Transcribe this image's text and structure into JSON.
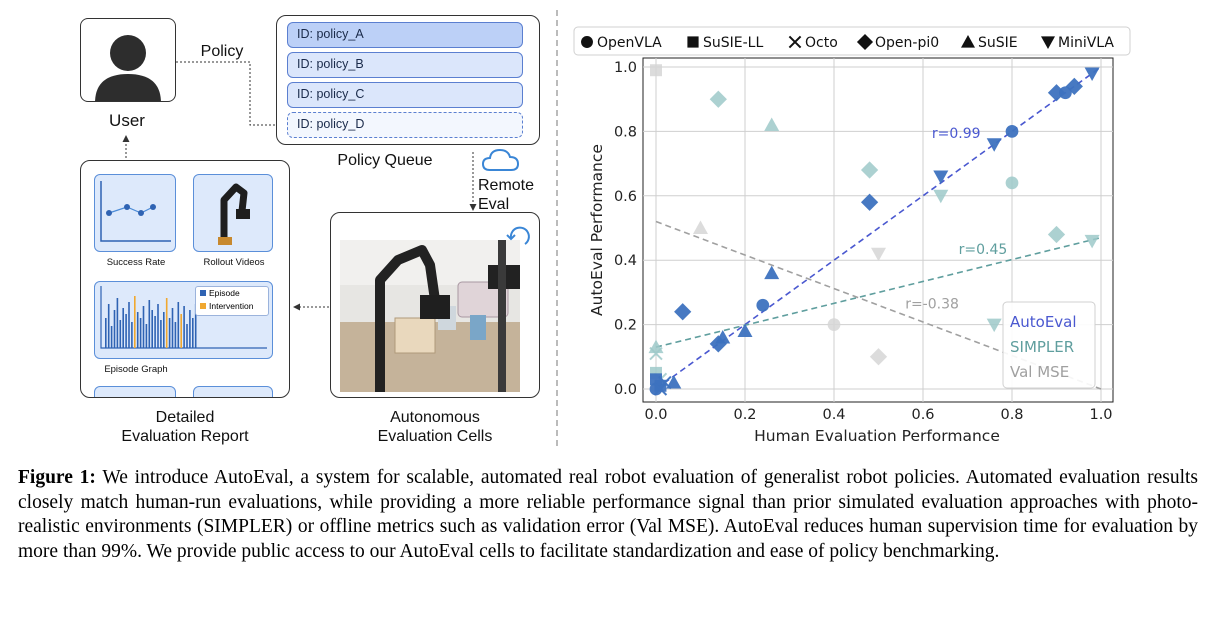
{
  "figure": {
    "user_label": "User",
    "policy_arrow_label": "Policy",
    "policy_queue": {
      "title": "Policy Queue",
      "items": [
        "ID: policy_A",
        "ID: policy_B",
        "ID: policy_C",
        "ID: policy_D"
      ]
    },
    "remote_eval_label": "Remote\nEval",
    "cells_label": "Autonomous\nEvaluation Cells",
    "report": {
      "title": "Detailed\nEvaluation Report",
      "success_rate_label": "Success Rate",
      "rollout_videos_label": "Rollout Videos",
      "episode_graph_label": "Episode Graph",
      "legend_episode": "Episode",
      "legend_intervention": "Intervention"
    },
    "colors": {
      "autoeval": "#4a58d0",
      "simpler": "#5f9e9e",
      "val_mse": "#a0a0a0",
      "point_blue": "#3d72bf",
      "card_fill": "#dde9fb",
      "intervention": "#f0a830"
    }
  },
  "chart_data": {
    "type": "scatter",
    "xlabel": "Human Evaluation Performance",
    "ylabel": "AutoEval Performance",
    "xlim": [
      0,
      1.0
    ],
    "ylim": [
      0,
      1.0
    ],
    "xticks": [
      "0.0",
      "0.2",
      "0.4",
      "0.6",
      "0.8",
      "1.0"
    ],
    "yticks": [
      "0.0",
      "0.2",
      "0.4",
      "0.6",
      "0.8",
      "1.0"
    ],
    "grid": true,
    "marker_legend": {
      "placement": "top",
      "entries": [
        {
          "name": "OpenVLA",
          "marker": "circle"
        },
        {
          "name": "SuSIE-LL",
          "marker": "square"
        },
        {
          "name": "Octo",
          "marker": "x"
        },
        {
          "name": "Open-pi0",
          "marker": "diamond"
        },
        {
          "name": "SuSIE",
          "marker": "triangle-up"
        },
        {
          "name": "MiniVLA",
          "marker": "triangle-down"
        }
      ]
    },
    "method_legend": {
      "placement": "bottom-right",
      "entries": [
        "AutoEval",
        "SIMPLER",
        "Val MSE"
      ]
    },
    "series": [
      {
        "name": "AutoEval",
        "color": "#3d72bf",
        "points": [
          {
            "x": 0.0,
            "y": 0.0,
            "m": "circle"
          },
          {
            "x": 0.01,
            "y": 0.01,
            "m": "square"
          },
          {
            "x": 0.0,
            "y": 0.03,
            "m": "square"
          },
          {
            "x": 0.02,
            "y": 0.02,
            "m": "x"
          },
          {
            "x": 0.01,
            "y": 0.0,
            "m": "x"
          },
          {
            "x": 0.04,
            "y": 0.02,
            "m": "triangle-up"
          },
          {
            "x": 0.06,
            "y": 0.24,
            "m": "diamond"
          },
          {
            "x": 0.14,
            "y": 0.14,
            "m": "diamond"
          },
          {
            "x": 0.15,
            "y": 0.16,
            "m": "triangle-up"
          },
          {
            "x": 0.2,
            "y": 0.18,
            "m": "triangle-up"
          },
          {
            "x": 0.24,
            "y": 0.26,
            "m": "circle"
          },
          {
            "x": 0.26,
            "y": 0.36,
            "m": "triangle-up"
          },
          {
            "x": 0.48,
            "y": 0.58,
            "m": "diamond"
          },
          {
            "x": 0.64,
            "y": 0.66,
            "m": "triangle-down"
          },
          {
            "x": 0.76,
            "y": 0.76,
            "m": "triangle-down"
          },
          {
            "x": 0.8,
            "y": 0.8,
            "m": "circle"
          },
          {
            "x": 0.9,
            "y": 0.92,
            "m": "diamond"
          },
          {
            "x": 0.92,
            "y": 0.92,
            "m": "circle"
          },
          {
            "x": 0.94,
            "y": 0.94,
            "m": "diamond"
          },
          {
            "x": 0.98,
            "y": 0.98,
            "m": "triangle-down"
          }
        ]
      },
      {
        "name": "SIMPLER",
        "color": "#9ec9c9",
        "points": [
          {
            "x": 0.0,
            "y": 0.13,
            "m": "triangle-up"
          },
          {
            "x": 0.0,
            "y": 0.11,
            "m": "x"
          },
          {
            "x": 0.01,
            "y": 0.03,
            "m": "x"
          },
          {
            "x": 0.0,
            "y": 0.05,
            "m": "square"
          },
          {
            "x": 0.14,
            "y": 0.9,
            "m": "diamond"
          },
          {
            "x": 0.26,
            "y": 0.82,
            "m": "triangle-up"
          },
          {
            "x": 0.48,
            "y": 0.68,
            "m": "diamond"
          },
          {
            "x": 0.64,
            "y": 0.6,
            "m": "triangle-down"
          },
          {
            "x": 0.8,
            "y": 0.64,
            "m": "circle"
          },
          {
            "x": 0.76,
            "y": 0.2,
            "m": "triangle-down"
          },
          {
            "x": 0.9,
            "y": 0.48,
            "m": "diamond"
          },
          {
            "x": 0.98,
            "y": 0.46,
            "m": "triangle-down"
          }
        ]
      },
      {
        "name": "Val MSE",
        "color": "#d6d6d6",
        "points": [
          {
            "x": 0.0,
            "y": 0.99,
            "m": "square"
          },
          {
            "x": 0.1,
            "y": 0.5,
            "m": "triangle-up"
          },
          {
            "x": 0.4,
            "y": 0.2,
            "m": "circle"
          },
          {
            "x": 0.5,
            "y": 0.42,
            "m": "triangle-down"
          },
          {
            "x": 0.5,
            "y": 0.1,
            "m": "diamond"
          },
          {
            "x": 0.0,
            "y": 0.0,
            "m": "circle"
          }
        ]
      }
    ],
    "fit_lines": [
      {
        "series": "AutoEval",
        "label": "r=0.99",
        "from": [
          0.0,
          0.0
        ],
        "to": [
          1.0,
          1.0
        ],
        "label_at": [
          0.62,
          0.78
        ]
      },
      {
        "series": "SIMPLER",
        "label": "r=0.45",
        "from": [
          0.0,
          0.13
        ],
        "to": [
          1.0,
          0.47
        ],
        "label_at": [
          0.68,
          0.42
        ]
      },
      {
        "series": "Val MSE",
        "label": "r=-0.38",
        "from": [
          0.0,
          0.52
        ],
        "to": [
          1.0,
          0.0
        ],
        "label_at": [
          0.56,
          0.25
        ]
      }
    ]
  },
  "caption": {
    "label": "Figure 1:",
    "text": "We introduce AutoEval, a system for scalable, automated real robot evaluation of generalist robot policies. Automated evaluation results closely match human-run evaluations, while providing a more reliable performance signal than prior simulated evaluation approaches with photo-realistic environments (SIMPLER) or offline metrics such as validation error (Val MSE). AutoEval reduces human supervision time for evaluation by more than 99%. We provide public access to our AutoEval cells to facilitate standardization and ease of policy benchmarking."
  }
}
